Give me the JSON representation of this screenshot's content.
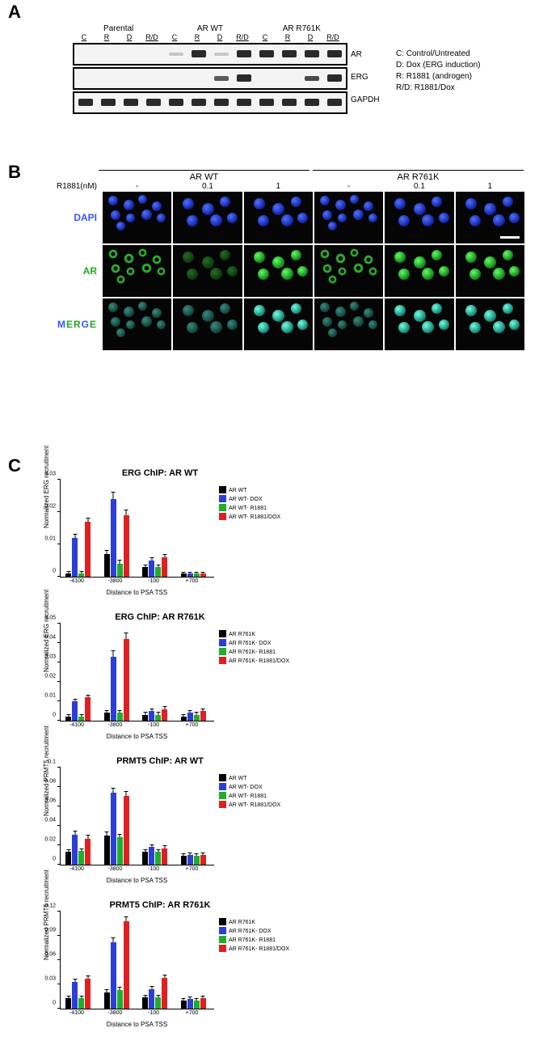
{
  "colors": {
    "black": "#000000",
    "blue": "#2b3fd6",
    "green": "#1fae2b",
    "red": "#e02020",
    "dapi": "#3355ff",
    "ar_green": "#22aa22"
  },
  "panel_letters": {
    "A": "A",
    "B": "B",
    "C": "C"
  },
  "panelA": {
    "groups": [
      "Parental",
      "AR WT",
      "AR R761K"
    ],
    "lanes": [
      "C",
      "R",
      "D",
      "R/D",
      "C",
      "R",
      "D",
      "R/D",
      "C",
      "R",
      "D",
      "R/D"
    ],
    "row_labels": [
      "AR",
      "ERG",
      "GAPDH"
    ],
    "key_lines": [
      "C: Control/Untreated",
      "D: Dox (ERG induction)",
      "R: R1881 (androgen)",
      "R/D: R1881/Dox"
    ],
    "bands": {
      "AR": [
        0,
        0,
        0,
        0,
        0.15,
        0.9,
        0.15,
        1.0,
        0.9,
        0.9,
        0.9,
        1.0
      ],
      "ERG": [
        0,
        0,
        0,
        0,
        0,
        0,
        0.6,
        0.9,
        0,
        0,
        0.7,
        0.95
      ],
      "GAPDH": [
        1,
        1,
        1,
        1,
        1,
        1,
        1,
        1,
        1,
        1,
        1,
        1
      ]
    }
  },
  "panelB": {
    "top_groups": [
      "AR WT",
      "AR R761K"
    ],
    "dose_label": "R1881(nM)",
    "doses": [
      "-",
      "0.1",
      "1",
      "-",
      "0.1",
      "1"
    ],
    "row_labels": [
      "DAPI",
      "AR",
      "MERGE"
    ],
    "green_profile": [
      "ring",
      "greendim",
      "green",
      "ring",
      "green",
      "green"
    ],
    "merge_profile": [
      "cyandim",
      "cyandim",
      "cyan",
      "cyandim",
      "cyan",
      "cyan"
    ],
    "nuclei_layout": [
      [
        8,
        8,
        12
      ],
      [
        30,
        16,
        13
      ],
      [
        52,
        6,
        11
      ],
      [
        72,
        18,
        12
      ],
      [
        12,
        36,
        12
      ],
      [
        34,
        42,
        11
      ],
      [
        56,
        34,
        13
      ],
      [
        78,
        42,
        11
      ],
      [
        20,
        58,
        11
      ]
    ],
    "nuclei_sparse": [
      [
        14,
        12,
        14
      ],
      [
        42,
        22,
        15
      ],
      [
        68,
        10,
        13
      ],
      [
        20,
        46,
        14
      ],
      [
        54,
        44,
        15
      ],
      [
        78,
        40,
        13
      ]
    ],
    "scalebar_cell_index": 5
  },
  "panelC": {
    "series_colors": [
      "#000000",
      "#2b3fd6",
      "#1fae2b",
      "#e02020"
    ],
    "x_categories": [
      "-4100",
      "-3800",
      "-100",
      "+700"
    ],
    "xlabel": "Distance to PSA TSS",
    "charts": [
      {
        "title": "ERG ChIP: AR WT",
        "ylabel": "Normalized ERG\nrecruitment",
        "ymax": 0.03,
        "ytick_step": 0.01,
        "legend": [
          "AR WT",
          "AR WT- DOX",
          "AR WT- R1881",
          "AR WT- R1881/DOX"
        ],
        "values": [
          [
            0.001,
            0.007,
            0.003,
            0.001
          ],
          [
            0.012,
            0.024,
            0.005,
            0.001
          ],
          [
            0.001,
            0.004,
            0.003,
            0.001
          ],
          [
            0.017,
            0.019,
            0.006,
            0.001
          ]
        ],
        "errors": [
          [
            0.0005,
            0.001,
            0.0005,
            0.0003
          ],
          [
            0.001,
            0.002,
            0.0008,
            0.0003
          ],
          [
            0.0005,
            0.001,
            0.0005,
            0.0003
          ],
          [
            0.001,
            0.0015,
            0.0008,
            0.0003
          ]
        ]
      },
      {
        "title": "ERG ChIP: AR R761K",
        "ylabel": "Normalized ERG\nrecruitment",
        "ymax": 0.05,
        "ytick_step": 0.01,
        "legend": [
          "AR R761K",
          "AR R761K- DOX",
          "AR R761K- R1881",
          "AR R761K- R1881/DOX"
        ],
        "values": [
          [
            0.002,
            0.004,
            0.003,
            0.002
          ],
          [
            0.01,
            0.033,
            0.005,
            0.004
          ],
          [
            0.002,
            0.004,
            0.003,
            0.003
          ],
          [
            0.012,
            0.042,
            0.006,
            0.005
          ]
        ],
        "errors": [
          [
            0.001,
            0.001,
            0.001,
            0.001
          ],
          [
            0.001,
            0.003,
            0.001,
            0.001
          ],
          [
            0.001,
            0.001,
            0.001,
            0.001
          ],
          [
            0.001,
            0.003,
            0.001,
            0.001
          ]
        ]
      },
      {
        "title": "PRMT5 ChIP: AR WT",
        "ylabel": "Normalized PRMT5\nrecruitment",
        "ymax": 0.1,
        "ytick_step": 0.02,
        "legend": [
          "AR WT",
          "AR WT- DOX",
          "AR WT- R1881",
          "AR WT- R1881/DOX"
        ],
        "values": [
          [
            0.013,
            0.03,
            0.013,
            0.009
          ],
          [
            0.031,
            0.074,
            0.018,
            0.01
          ],
          [
            0.014,
            0.028,
            0.013,
            0.009
          ],
          [
            0.027,
            0.071,
            0.017,
            0.01
          ]
        ],
        "errors": [
          [
            0.002,
            0.003,
            0.002,
            0.002
          ],
          [
            0.003,
            0.004,
            0.002,
            0.002
          ],
          [
            0.002,
            0.003,
            0.002,
            0.002
          ],
          [
            0.003,
            0.004,
            0.002,
            0.002
          ]
        ]
      },
      {
        "title": "PRMT5 ChIP: AR R761K",
        "ylabel": "Normalized PRMT5\nrecruitment",
        "ymax": 0.12,
        "ytick_step": 0.03,
        "legend": [
          "AR R761K",
          "AR R761K- DOX",
          "AR R761K- R1881",
          "AR R761K- R1881/DOX"
        ],
        "values": [
          [
            0.013,
            0.02,
            0.014,
            0.01
          ],
          [
            0.033,
            0.082,
            0.024,
            0.012
          ],
          [
            0.013,
            0.023,
            0.014,
            0.01
          ],
          [
            0.037,
            0.108,
            0.038,
            0.013
          ]
        ],
        "errors": [
          [
            0.002,
            0.003,
            0.002,
            0.002
          ],
          [
            0.003,
            0.005,
            0.003,
            0.002
          ],
          [
            0.002,
            0.003,
            0.002,
            0.002
          ],
          [
            0.003,
            0.005,
            0.003,
            0.002
          ]
        ]
      }
    ]
  }
}
